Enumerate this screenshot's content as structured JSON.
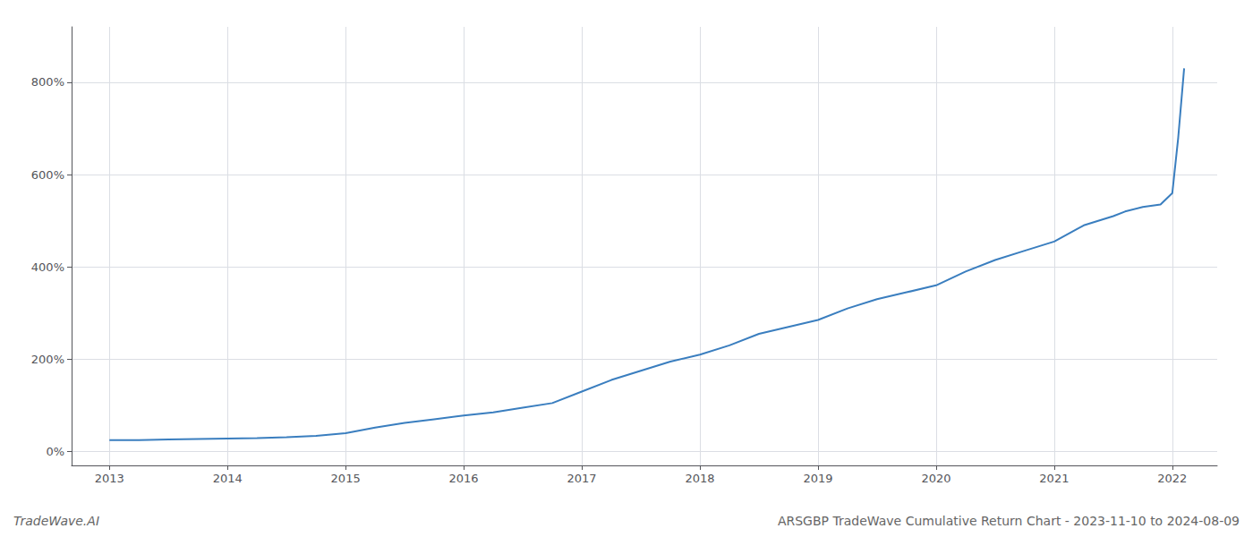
{
  "chart_data": {
    "type": "line",
    "title": "ARSGBP TradeWave Cumulative Return Chart - 2023-11-10 to 2024-08-09",
    "annotations": [
      "TradeWave.AI"
    ],
    "x": [
      2013.0,
      2013.25,
      2013.5,
      2013.75,
      2014.0,
      2014.25,
      2014.5,
      2014.75,
      2015.0,
      2015.25,
      2015.5,
      2015.75,
      2016.0,
      2016.25,
      2016.5,
      2016.75,
      2017.0,
      2017.25,
      2017.5,
      2017.75,
      2018.0,
      2018.25,
      2018.5,
      2018.75,
      2019.0,
      2019.25,
      2019.5,
      2019.75,
      2020.0,
      2020.25,
      2020.5,
      2020.75,
      2021.0,
      2021.25,
      2021.5,
      2021.6,
      2021.75,
      2021.9,
      2022.0,
      2022.05,
      2022.1
    ],
    "values": [
      25,
      25,
      26,
      27,
      28,
      29,
      31,
      34,
      40,
      52,
      62,
      70,
      78,
      85,
      95,
      105,
      130,
      155,
      175,
      195,
      210,
      230,
      255,
      270,
      285,
      310,
      330,
      345,
      360,
      390,
      415,
      435,
      455,
      490,
      510,
      520,
      530,
      535,
      560,
      680,
      830
    ],
    "color": "#3a7ebf",
    "xlim": [
      2012.68,
      2022.38
    ],
    "xticks": [
      2013,
      2014,
      2015,
      2016,
      2017,
      2018,
      2019,
      2020,
      2021,
      2022
    ],
    "ylim": [
      -30,
      920
    ],
    "yticks": [
      {
        "value": 0,
        "label": "0%"
      },
      {
        "value": 200,
        "label": "200%"
      },
      {
        "value": 400,
        "label": "400%"
      },
      {
        "value": 600,
        "label": "600%"
      },
      {
        "value": 800,
        "label": "800%"
      }
    ],
    "grid": true
  }
}
